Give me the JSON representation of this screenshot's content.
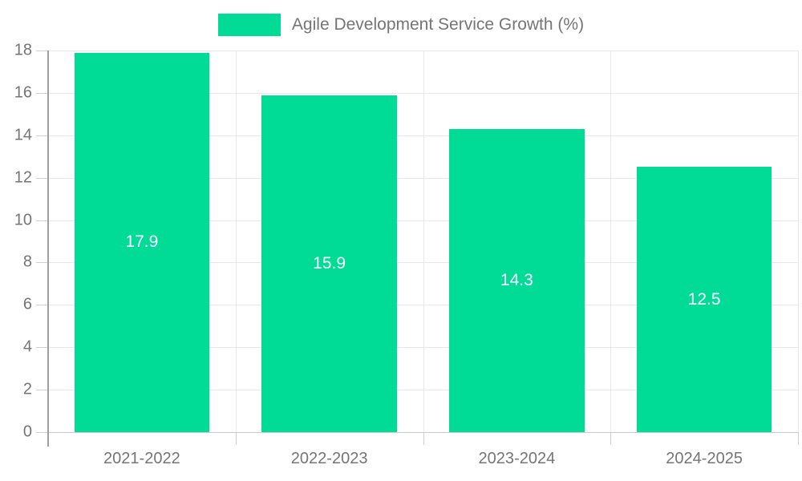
{
  "legend": {
    "label": "Agile Development Service Growth (%)"
  },
  "colors": {
    "bar": "#00DC96",
    "axis_text": "#757575",
    "value_text": "#ffffff",
    "gridline": "#e8e8e8",
    "axis_line": "#9e9e9e"
  },
  "chart_data": {
    "type": "bar",
    "title": "Agile Development Service Growth (%)",
    "categories": [
      "2021-2022",
      "2022-2023",
      "2023-2024",
      "2024-2025"
    ],
    "values": [
      17.9,
      15.9,
      14.3,
      12.5
    ],
    "xlabel": "",
    "ylabel": "",
    "ylim": [
      0,
      18
    ],
    "yticks": [
      0,
      2,
      4,
      6,
      8,
      10,
      12,
      14,
      16,
      18
    ],
    "grid": true,
    "legend_position": "top",
    "value_labels_inside_bars": true
  }
}
